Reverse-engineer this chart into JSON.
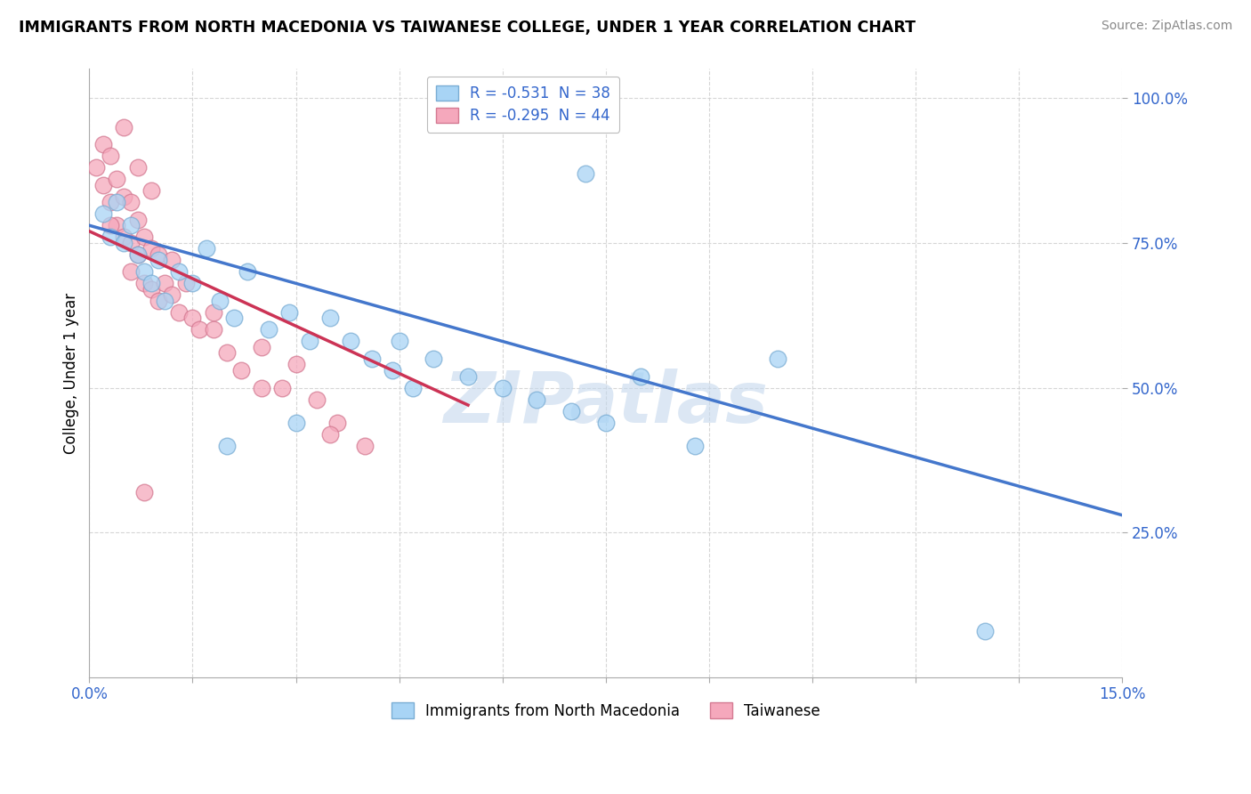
{
  "title": "IMMIGRANTS FROM NORTH MACEDONIA VS TAIWANESE COLLEGE, UNDER 1 YEAR CORRELATION CHART",
  "source": "Source: ZipAtlas.com",
  "ylabel": "College, Under 1 year",
  "xlim": [
    0.0,
    0.15
  ],
  "ylim": [
    0.0,
    1.05
  ],
  "xticks": [
    0.0,
    0.015,
    0.03,
    0.045,
    0.06,
    0.075,
    0.09,
    0.105,
    0.12,
    0.135,
    0.15
  ],
  "xticklabels": [
    "0.0%",
    "",
    "",
    "",
    "",
    "",
    "",
    "",
    "",
    "",
    "15.0%"
  ],
  "ytick_positions": [
    0.25,
    0.5,
    0.75,
    1.0
  ],
  "ytick_labels": [
    "25.0%",
    "50.0%",
    "75.0%",
    "100.0%"
  ],
  "blue_color": "#A8D4F5",
  "blue_edge": "#7AADD4",
  "pink_color": "#F5A8BC",
  "pink_edge": "#D47A92",
  "blue_line_color": "#4477CC",
  "pink_line_color": "#CC3355",
  "R_blue": -0.531,
  "N_blue": 38,
  "R_pink": -0.295,
  "N_pink": 44,
  "watermark": "ZIPatlas",
  "legend_label_blue": "Immigrants from North Macedonia",
  "legend_label_pink": "Taiwanese",
  "blue_scatter_x": [
    0.002,
    0.003,
    0.004,
    0.005,
    0.006,
    0.007,
    0.008,
    0.009,
    0.01,
    0.011,
    0.013,
    0.015,
    0.017,
    0.019,
    0.021,
    0.023,
    0.026,
    0.029,
    0.032,
    0.035,
    0.038,
    0.041,
    0.044,
    0.047,
    0.05,
    0.055,
    0.06,
    0.065,
    0.07,
    0.075,
    0.08,
    0.088,
    0.03,
    0.02,
    0.045,
    0.072,
    0.1,
    0.13
  ],
  "blue_scatter_y": [
    0.8,
    0.76,
    0.82,
    0.75,
    0.78,
    0.73,
    0.7,
    0.68,
    0.72,
    0.65,
    0.7,
    0.68,
    0.74,
    0.65,
    0.62,
    0.7,
    0.6,
    0.63,
    0.58,
    0.62,
    0.58,
    0.55,
    0.53,
    0.5,
    0.55,
    0.52,
    0.5,
    0.48,
    0.46,
    0.44,
    0.52,
    0.4,
    0.44,
    0.4,
    0.58,
    0.87,
    0.55,
    0.08
  ],
  "pink_scatter_x": [
    0.001,
    0.002,
    0.002,
    0.003,
    0.003,
    0.004,
    0.004,
    0.005,
    0.005,
    0.006,
    0.006,
    0.006,
    0.007,
    0.007,
    0.008,
    0.008,
    0.009,
    0.009,
    0.01,
    0.01,
    0.011,
    0.012,
    0.013,
    0.014,
    0.015,
    0.016,
    0.018,
    0.02,
    0.022,
    0.025,
    0.028,
    0.03,
    0.033,
    0.036,
    0.04,
    0.005,
    0.007,
    0.009,
    0.003,
    0.012,
    0.018,
    0.025,
    0.035,
    0.008
  ],
  "pink_scatter_y": [
    0.88,
    0.92,
    0.85,
    0.9,
    0.82,
    0.86,
    0.78,
    0.83,
    0.76,
    0.82,
    0.75,
    0.7,
    0.79,
    0.73,
    0.76,
    0.68,
    0.74,
    0.67,
    0.73,
    0.65,
    0.68,
    0.66,
    0.63,
    0.68,
    0.62,
    0.6,
    0.63,
    0.56,
    0.53,
    0.57,
    0.5,
    0.54,
    0.48,
    0.44,
    0.4,
    0.95,
    0.88,
    0.84,
    0.78,
    0.72,
    0.6,
    0.5,
    0.42,
    0.32
  ]
}
